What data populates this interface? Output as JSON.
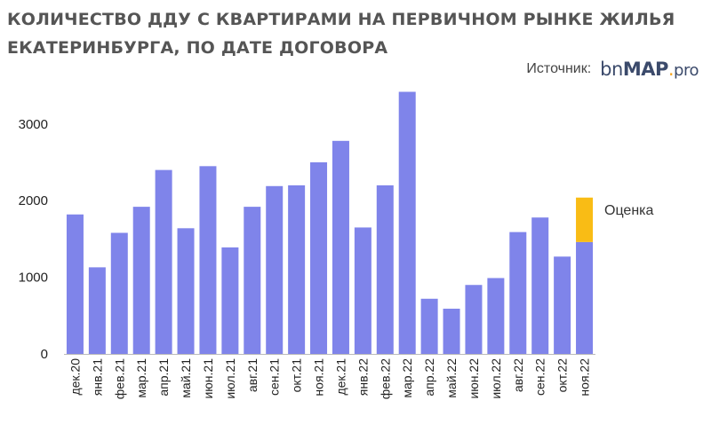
{
  "header": {
    "title": "КОЛИЧЕСТВО ДДУ С КВАРТИРАМИ НА ПЕРВИЧНОМ РЫНКЕ ЖИЛЬЯ ЕКАТЕРИНБУРГА, ПО ДАТЕ ДОГОВОРА",
    "source_label": "Источник:",
    "logo": {
      "part1": "bn",
      "part2": "MAP",
      "part3": ".",
      "part4": "pro"
    }
  },
  "colors": {
    "bar": "#7f84ea",
    "estimate": "#f9bc15",
    "title": "#555555"
  },
  "chart_data": {
    "type": "bar",
    "title": "КОЛИЧЕСТВО ДДУ С КВАРТИРАМИ НА ПЕРВИЧНОМ РЫНКЕ ЖИЛЬЯ ЕКАТЕРИНБУРГА, ПО ДАТЕ ДОГОВОРА",
    "xlabel": "",
    "ylabel": "",
    "ylim": [
      0,
      3500
    ],
    "yticks": [
      0,
      1000,
      2000,
      3000
    ],
    "grid": false,
    "categories": [
      "дек.20",
      "янв.21",
      "фев.21",
      "мар.21",
      "апр.21",
      "май.21",
      "июн.21",
      "июл.21",
      "авг.21",
      "сен.21",
      "окт.21",
      "ноя.21",
      "дек.21",
      "янв.22",
      "фев.22",
      "мар.22",
      "апр.22",
      "май.22",
      "июн.22",
      "июл.22",
      "авг.22",
      "сен.22",
      "окт.22",
      "ноя.22"
    ],
    "series": [
      {
        "values": [
          1820,
          1130,
          1580,
          1920,
          2400,
          1640,
          2450,
          1390,
          1920,
          2190,
          2200,
          2500,
          2780,
          1650,
          2200,
          3420,
          720,
          590,
          900,
          990,
          1590,
          1780,
          1270,
          1460
        ]
      },
      {
        "name": "Оценка",
        "values": [
          0,
          0,
          0,
          0,
          0,
          0,
          0,
          0,
          0,
          0,
          0,
          0,
          0,
          0,
          0,
          0,
          0,
          0,
          0,
          0,
          0,
          0,
          0,
          580
        ]
      }
    ],
    "annotation": "Оценка"
  }
}
